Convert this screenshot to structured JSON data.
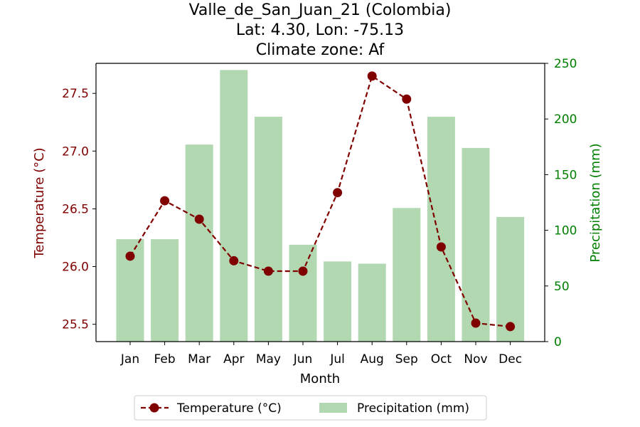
{
  "chart_data": {
    "type": "bar+line",
    "title_lines": [
      "Valle_de_San_Juan_21 (Colombia)",
      "Lat: 4.30, Lon: -75.13",
      "Climate zone: Af"
    ],
    "xlabel": "Month",
    "ylabel_left": "Temperature (°C)",
    "ylabel_right": "Precipitation (mm)",
    "categories": [
      "Jan",
      "Feb",
      "Mar",
      "Apr",
      "May",
      "Jun",
      "Jul",
      "Aug",
      "Sep",
      "Oct",
      "Nov",
      "Dec"
    ],
    "temperature": [
      26.09,
      26.57,
      26.41,
      26.05,
      25.96,
      25.96,
      26.64,
      27.65,
      27.45,
      26.17,
      25.51,
      25.48
    ],
    "precipitation": [
      92,
      92,
      177,
      244,
      202,
      87,
      72,
      70,
      120,
      202,
      174,
      112
    ],
    "ylim_left": [
      25.35,
      27.76
    ],
    "yticks_left": [
      "25.5",
      "26.0",
      "26.5",
      "27.0",
      "27.5"
    ],
    "ylim_right": [
      0,
      250
    ],
    "yticks_right": [
      "0",
      "50",
      "100",
      "150",
      "200",
      "250"
    ],
    "legend": {
      "position": "bottom-center",
      "items": [
        "Temperature (°C)",
        "Precipitation (mm)"
      ]
    },
    "colors": {
      "temperature": "#800000",
      "precipitation": "#b2d8b2",
      "right_axis": "#008000"
    },
    "grid": false
  }
}
